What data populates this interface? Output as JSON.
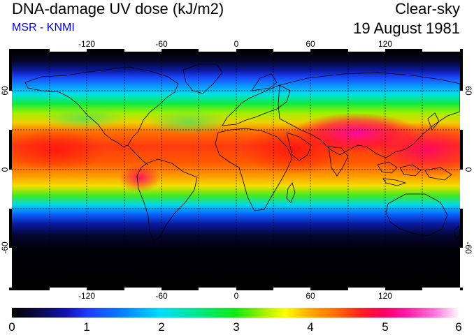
{
  "header": {
    "title": "DNA-damage UV dose (kJ/m2)",
    "subtitle": "MSR - KNMI",
    "condition": "Clear-sky",
    "date": "19 August 1981"
  },
  "map": {
    "lon_ticks": [
      "-120",
      "-60",
      "0",
      "60",
      "120"
    ],
    "lat_ticks": [
      "60",
      "0",
      "-60"
    ],
    "gridlines": "dashed"
  },
  "colorbar": {
    "ticks": [
      "0",
      "1",
      "2",
      "3",
      "4",
      "5",
      "6"
    ],
    "range": [
      0,
      6
    ]
  },
  "colors": {
    "subtitle": "#0000e0",
    "background": "#ffffff",
    "coastline": "#000000"
  }
}
